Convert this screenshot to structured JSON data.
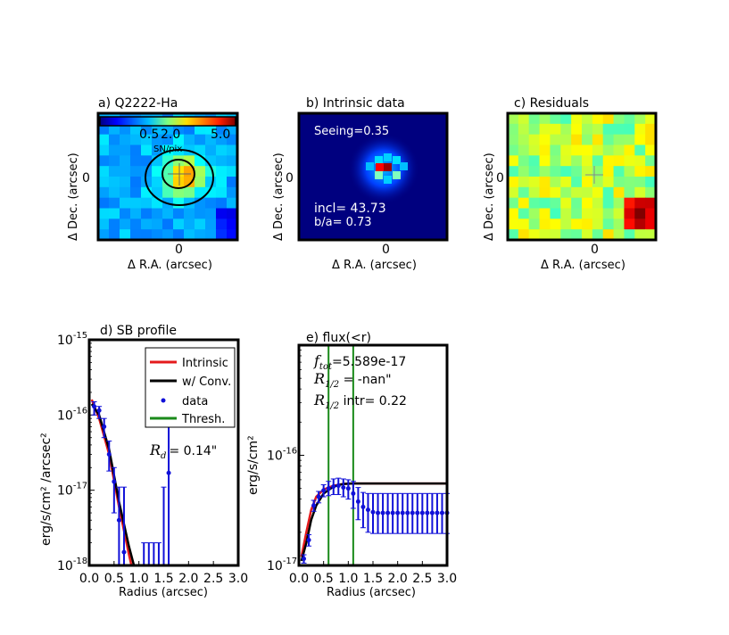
{
  "colors": {
    "frame": "#000000",
    "intrinsic": "#e41a1c",
    "convolved": "#000000",
    "data": "#1010d8",
    "thresh": "#1a8a1a",
    "image_bg": "#00007f"
  },
  "panels": [
    {
      "title": "a) Q2222-Ha",
      "xlabel": "Δ R.A. (arcsec)",
      "ylabel": "Δ Dec. (arcsec)",
      "xtick": "0",
      "ytick": "0",
      "colorbar": {
        "min_label": "0.5",
        "mid_label": "2.0",
        "max_label": "5.0",
        "unit": "SN/pix"
      }
    },
    {
      "title": "b) Intrinsic data",
      "xlabel": "Δ R.A. (arcsec)",
      "ylabel": "Δ Dec. (arcsec)",
      "xtick": "0",
      "ytick": "0",
      "seeing": "Seeing=0.35",
      "incl": "incl= 43.73",
      "ba": "b/a=  0.73"
    },
    {
      "title": "c) Residuals",
      "xlabel": "Δ R.A. (arcsec)",
      "ylabel": "Δ Dec. (arcsec)",
      "xtick": "0",
      "ytick": "0"
    }
  ],
  "chart_data": [
    {
      "type": "line",
      "title": "d) SB profile",
      "xlabel": "Radius (arcsec)",
      "ylabel": "erg/s/cm² /arcsec²",
      "yscale": "log",
      "xlim": [
        0,
        3.0
      ],
      "ylim": [
        1e-18,
        1e-15
      ],
      "xticks": [
        "0.0",
        "0.5",
        "1.0",
        "1.5",
        "2.0",
        "2.5",
        "3.0"
      ],
      "yticks": [
        {
          "base": "10",
          "exp": "-18"
        },
        {
          "base": "10",
          "exp": "-17"
        },
        {
          "base": "10",
          "exp": "-16"
        },
        {
          "base": "10",
          "exp": "-15"
        }
      ],
      "annotation": {
        "symbol": "R",
        "sub": "d",
        "text": "=  0.14\""
      },
      "legend": {
        "position": "upper right",
        "entries": [
          "Intrinsic",
          "w/ Conv.",
          "data",
          "Thresh."
        ]
      },
      "series": [
        {
          "name": "Intrinsic",
          "style": "line",
          "x": [
            0.05,
            0.2,
            0.4,
            0.6,
            0.8,
            0.85
          ],
          "y": [
            1.6e-16,
            9e-17,
            3e-17,
            6e-18,
            1.4e-18,
            1e-18
          ]
        },
        {
          "name": "w/ Conv.",
          "style": "line",
          "x": [
            0.05,
            0.2,
            0.4,
            0.6,
            0.8,
            0.9
          ],
          "y": [
            1.4e-16,
            1e-16,
            3.5e-17,
            7e-18,
            1.8e-18,
            1e-18
          ]
        },
        {
          "name": "data",
          "style": "points",
          "x": [
            0.1,
            0.2,
            0.3,
            0.4,
            0.5,
            0.6,
            0.7,
            1.1,
            1.2,
            1.3,
            1.4,
            1.5,
            1.6
          ],
          "y": [
            1.3e-16,
            1.15e-16,
            7e-17,
            3e-17,
            1.3e-17,
            4e-18,
            1.5e-18,
            8e-19,
            8e-19,
            8e-19,
            8e-19,
            8e-19,
            1.7e-17
          ],
          "yerr_low": [
            1e-16,
            9e-17,
            5e-17,
            1.8e-17,
            5e-18,
            1e-18,
            1e-18,
            1e-18,
            1e-18,
            1e-18,
            1e-18,
            1e-18,
            1e-18
          ],
          "yerr_high": [
            1.5e-16,
            1.3e-16,
            9e-17,
            4.5e-17,
            2e-17,
            1.1e-17,
            1.1e-17,
            2e-18,
            2e-18,
            2e-18,
            2e-18,
            1.1e-17,
            7e-17
          ]
        },
        {
          "name": "Thresh.",
          "style": "line",
          "x": [],
          "y": []
        }
      ]
    },
    {
      "type": "line",
      "title": "e) flux(<r)",
      "xlabel": "Radius (arcsec)",
      "ylabel": "erg/s/cm²",
      "yscale": "log",
      "xlim": [
        0,
        3.0
      ],
      "ylim": [
        1e-17,
        1e-15
      ],
      "xticks": [
        "0.0",
        "0.5",
        "1.0",
        "1.5",
        "2.0",
        "2.5",
        "3.0"
      ],
      "yticks": [
        {
          "base": "10",
          "exp": "-17"
        },
        {
          "base": "10",
          "exp": "-16"
        }
      ],
      "annotations": [
        {
          "symbol": "f",
          "sub": "tot",
          "text": "=5.589e-17"
        },
        {
          "symbol": "R",
          "sub": "1/2",
          "text": " =  -nan\""
        },
        {
          "symbol": "R",
          "sub": "1/2",
          "text": " intr=  0.22"
        }
      ],
      "thresholds_x": [
        0.6,
        1.1
      ],
      "series": [
        {
          "name": "Intrinsic",
          "style": "line",
          "x": [
            0.05,
            0.15,
            0.25,
            0.35,
            0.5,
            0.7,
            0.9,
            1.1,
            3.0
          ],
          "y": [
            1.2e-17,
            2e-17,
            3.2e-17,
            4.2e-17,
            4.9e-17,
            5.3e-17,
            5.5e-17,
            5.55e-17,
            5.55e-17
          ]
        },
        {
          "name": "w/ Conv.",
          "style": "line",
          "x": [
            0.05,
            0.15,
            0.25,
            0.35,
            0.5,
            0.7,
            0.9,
            1.1,
            3.0
          ],
          "y": [
            1.1e-17,
            1.6e-17,
            2.6e-17,
            3.5e-17,
            4.5e-17,
            5.2e-17,
            5.5e-17,
            5.55e-17,
            5.55e-17
          ]
        },
        {
          "name": "data",
          "style": "points",
          "x": [
            0.1,
            0.2,
            0.3,
            0.4,
            0.5,
            0.6,
            0.7,
            0.8,
            0.9,
            1.0,
            1.1,
            1.2,
            1.3,
            1.4,
            1.5,
            1.6,
            1.7,
            1.8,
            1.9,
            2.0,
            2.1,
            2.2,
            2.3,
            2.4,
            2.5,
            2.6,
            2.7,
            2.8,
            2.9,
            3.0
          ],
          "y": [
            1.15e-17,
            1.7e-17,
            3.5e-17,
            4.2e-17,
            4.8e-17,
            5e-17,
            5.2e-17,
            5.3e-17,
            5.1e-17,
            5e-17,
            4.5e-17,
            3.8e-17,
            3.4e-17,
            3.2e-17,
            3.05e-17,
            3e-17,
            3e-17,
            3e-17,
            3e-17,
            3e-17,
            3e-17,
            3e-17,
            3e-17,
            3e-17,
            3e-17,
            3e-17,
            3e-17,
            3e-17,
            3e-17,
            3e-17
          ],
          "yerr_low": [
            1.05e-17,
            1.5e-17,
            3.1e-17,
            3.7e-17,
            4.2e-17,
            4.3e-17,
            4.4e-17,
            4.4e-17,
            4.2e-17,
            4e-17,
            3.3e-17,
            2.6e-17,
            2.2e-17,
            2e-17,
            1.95e-17,
            1.95e-17,
            1.95e-17,
            1.95e-17,
            1.95e-17,
            1.95e-17,
            1.95e-17,
            1.95e-17,
            1.95e-17,
            1.95e-17,
            1.95e-17,
            1.95e-17,
            1.95e-17,
            1.95e-17,
            1.95e-17,
            1.95e-17
          ],
          "yerr_high": [
            1.25e-17,
            1.9e-17,
            3.9e-17,
            4.7e-17,
            5.4e-17,
            5.8e-17,
            6.1e-17,
            6.2e-17,
            6.1e-17,
            6e-17,
            5.8e-17,
            5.1e-17,
            4.6e-17,
            4.5e-17,
            4.5e-17,
            4.5e-17,
            4.5e-17,
            4.5e-17,
            4.5e-17,
            4.5e-17,
            4.5e-17,
            4.5e-17,
            4.5e-17,
            4.5e-17,
            4.5e-17,
            4.5e-17,
            4.5e-17,
            4.5e-17,
            4.5e-17,
            4.5e-17
          ]
        }
      ]
    }
  ]
}
